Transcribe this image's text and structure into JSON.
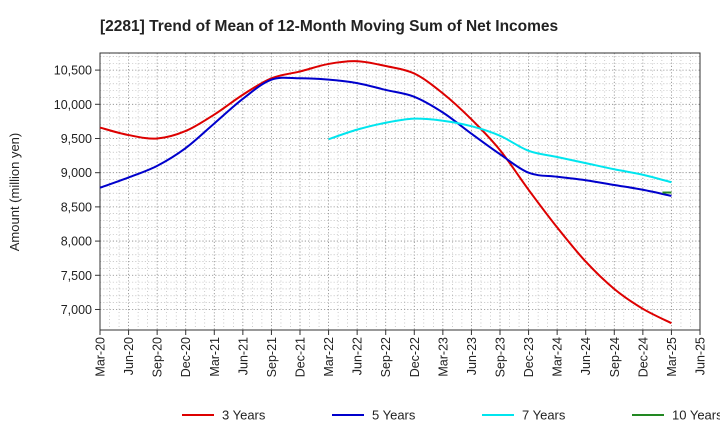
{
  "chart_data": {
    "type": "line",
    "title": "[2281]  Trend of Mean of 12-Month Moving Sum of Net Incomes",
    "xlabel": "",
    "ylabel": "Amount (million yen)",
    "categories": [
      "Mar-20",
      "Jun-20",
      "Sep-20",
      "Dec-20",
      "Mar-21",
      "Jun-21",
      "Sep-21",
      "Dec-21",
      "Mar-22",
      "Jun-22",
      "Sep-22",
      "Dec-22",
      "Mar-23",
      "Jun-23",
      "Sep-23",
      "Dec-23",
      "Mar-24",
      "Jun-24",
      "Sep-24",
      "Dec-24",
      "Mar-25",
      "Jun-25"
    ],
    "yticks": [
      "7,000",
      "7,500",
      "8,000",
      "8,500",
      "9,000",
      "9,500",
      "10,000",
      "10,500"
    ],
    "ytick_values": [
      7000,
      7500,
      8000,
      8500,
      9000,
      9500,
      10000,
      10500
    ],
    "ylim": [
      6700,
      10750
    ],
    "grid": true,
    "legend_position": "bottom",
    "series": [
      {
        "name": "3 Years",
        "color": "#dd0000",
        "values": [
          9660,
          9550,
          9500,
          9610,
          9850,
          10140,
          10380,
          10480,
          10590,
          10630,
          10560,
          10450,
          10160,
          9780,
          9330,
          8750,
          8200,
          7700,
          7300,
          7010,
          6800,
          null
        ]
      },
      {
        "name": "5 Years",
        "color": "#0000cc",
        "values": [
          8780,
          8930,
          9100,
          9360,
          9720,
          10080,
          10360,
          10380,
          10360,
          10310,
          10210,
          10110,
          9880,
          9570,
          9270,
          9000,
          8940,
          8890,
          8820,
          8750,
          8660,
          null
        ]
      },
      {
        "name": "7 Years",
        "color": "#00e5ee",
        "values": [
          null,
          null,
          null,
          null,
          null,
          null,
          null,
          null,
          9490,
          9630,
          9730,
          9790,
          9760,
          9680,
          9540,
          9320,
          9230,
          9140,
          9050,
          8970,
          8860,
          null
        ]
      },
      {
        "name": "10 Years",
        "color": "#228822",
        "values": [
          null,
          null,
          null,
          null,
          null,
          null,
          null,
          null,
          null,
          null,
          null,
          null,
          null,
          null,
          null,
          null,
          null,
          null,
          null,
          null,
          8710,
          null
        ]
      }
    ]
  }
}
